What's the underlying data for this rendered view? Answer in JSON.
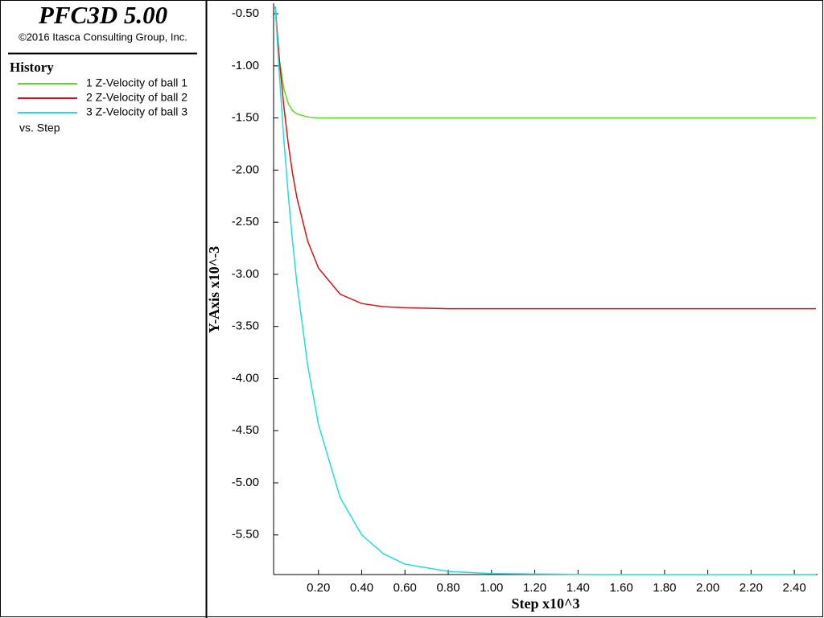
{
  "chart_data": {
    "type": "line",
    "title": "PFC3D 5.00",
    "subtitle": "©2016 Itasca Consulting Group, Inc.",
    "legend_title": "History",
    "x_versus": "vs. Step",
    "x_label": "Step x10^3",
    "y_label": "Y-Axis x10^-3",
    "x": [
      0,
      0.02,
      0.04,
      0.06,
      0.08,
      0.1,
      0.15,
      0.2,
      0.3,
      0.4,
      0.5,
      0.6,
      0.8,
      1.0,
      1.5,
      2.0,
      2.5
    ],
    "series": [
      {
        "name": "1 Z-Velocity of ball 1",
        "color": "#55dd22",
        "values": [
          -0.43,
          -0.95,
          -1.22,
          -1.36,
          -1.43,
          -1.46,
          -1.49,
          -1.5,
          -1.5,
          -1.5,
          -1.5,
          -1.5,
          -1.5,
          -1.5,
          -1.5,
          -1.5,
          -1.5
        ]
      },
      {
        "name": "2 Z-Velocity of ball 2",
        "color": "#dd1111",
        "values": [
          -0.43,
          -0.96,
          -1.39,
          -1.74,
          -2.03,
          -2.26,
          -2.68,
          -2.94,
          -3.19,
          -3.28,
          -3.31,
          -3.32,
          -3.33,
          -3.33,
          -3.33,
          -3.33,
          -3.33
        ]
      },
      {
        "name": "3 Z-Velocity of ball 3",
        "color": "#22dddd",
        "values": [
          -0.43,
          -1.11,
          -1.71,
          -2.23,
          -2.68,
          -3.08,
          -3.87,
          -4.44,
          -5.14,
          -5.5,
          -5.68,
          -5.78,
          -5.85,
          -5.87,
          -5.88,
          -5.88,
          -5.88
        ]
      }
    ],
    "xlim": [
      0,
      2.5
    ],
    "ylim": [
      -5.88,
      -0.43
    ],
    "xticks": [
      {
        "value": 0.2,
        "label": "0.20"
      },
      {
        "value": 0.4,
        "label": "0.40"
      },
      {
        "value": 0.6,
        "label": "0.60"
      },
      {
        "value": 0.8,
        "label": "0.80"
      },
      {
        "value": 1.0,
        "label": "1.00"
      },
      {
        "value": 1.2,
        "label": "1.20"
      },
      {
        "value": 1.4,
        "label": "1.40"
      },
      {
        "value": 1.6,
        "label": "1.60"
      },
      {
        "value": 1.8,
        "label": "1.80"
      },
      {
        "value": 2.0,
        "label": "2.00"
      },
      {
        "value": 2.2,
        "label": "2.20"
      },
      {
        "value": 2.4,
        "label": "2.40"
      }
    ],
    "yticks": [
      {
        "value": -0.5,
        "label": "-0.50"
      },
      {
        "value": -1.0,
        "label": "-1.00"
      },
      {
        "value": -1.5,
        "label": "-1.50"
      },
      {
        "value": -2.0,
        "label": "-2.00"
      },
      {
        "value": -2.5,
        "label": "-2.50"
      },
      {
        "value": -3.0,
        "label": "-3.00"
      },
      {
        "value": -3.5,
        "label": "-3.50"
      },
      {
        "value": -4.0,
        "label": "-4.00"
      },
      {
        "value": -4.5,
        "label": "-4.50"
      },
      {
        "value": -5.0,
        "label": "-5.00"
      },
      {
        "value": -5.5,
        "label": "-5.50"
      }
    ]
  }
}
